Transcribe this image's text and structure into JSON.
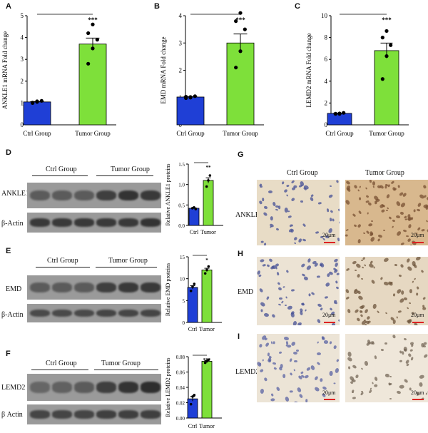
{
  "panels": {
    "A": {
      "letter": "A"
    },
    "B": {
      "letter": "B"
    },
    "C": {
      "letter": "C"
    },
    "D": {
      "letter": "D"
    },
    "E": {
      "letter": "E"
    },
    "F": {
      "letter": "F"
    },
    "G": {
      "letter": "G"
    },
    "H": {
      "letter": "H"
    },
    "I": {
      "letter": "I"
    }
  },
  "western": {
    "D": {
      "ctrl_group": "Ctrl Group",
      "tumor_group": "Tumor Group",
      "row1": "ANKLE1",
      "row2": "β-Actin"
    },
    "E": {
      "ctrl_group": "Ctrl Group",
      "tumor_group": "Tumor Group",
      "row1": "EMD",
      "row2": "β-Actin"
    },
    "F": {
      "ctrl_group": "Ctrl Group",
      "tumor_group": "Tumor Group",
      "row1": "LEMD2",
      "row2": "β Actin"
    }
  },
  "ihc": {
    "col_ctrl": "Ctrl Group",
    "col_tumor": "Tumor Group",
    "rows": [
      "ANKLE1",
      "EMD",
      "LEMD2"
    ],
    "scale": "20μm"
  },
  "chart_data": [
    {
      "id": "A",
      "type": "bar",
      "categories": [
        "Ctrl Group",
        "Tumor Group"
      ],
      "values": [
        1.05,
        3.7
      ],
      "points": [
        [
          1.0,
          1.05,
          1.1,
          1.02,
          1.08
        ],
        [
          2.8,
          3.5,
          3.9,
          4.2,
          4.6
        ]
      ],
      "ylabel": "ANKLE1 mRNA Fold change",
      "ylim": [
        0,
        5
      ],
      "yticks": [
        0,
        1,
        2,
        3,
        4,
        5
      ],
      "sig": "***"
    },
    {
      "id": "B",
      "type": "bar",
      "categories": [
        "Ctrl Group",
        "Tumor Group"
      ],
      "values": [
        1.02,
        3.0
      ],
      "points": [
        [
          0.98,
          1.0,
          1.05,
          1.03,
          1.02
        ],
        [
          2.1,
          2.7,
          3.5,
          3.8,
          4.1
        ]
      ],
      "ylabel": "EMD mRNA Fold change",
      "ylim": [
        0,
        4
      ],
      "yticks": [
        0,
        1,
        2,
        3,
        4
      ],
      "sig": "***"
    },
    {
      "id": "C",
      "type": "bar",
      "categories": [
        "Ctrl Group",
        "Tumor Group"
      ],
      "values": [
        1.05,
        6.8
      ],
      "points": [
        [
          1.0,
          1.05,
          1.1,
          1.02,
          1.0
        ],
        [
          4.2,
          6.3,
          7.3,
          8.0,
          8.6
        ]
      ],
      "ylabel": "LEMD2 mRNA Fold change",
      "ylim": [
        0,
        10
      ],
      "yticks": [
        0,
        2,
        4,
        6,
        8,
        10
      ],
      "sig": "***"
    },
    {
      "id": "D",
      "type": "bar",
      "categories": [
        "Ctrl",
        "Tumor"
      ],
      "values": [
        0.42,
        1.1
      ],
      "points": [
        [
          0.42,
          0.44,
          0.4
        ],
        [
          0.95,
          1.1,
          1.22
        ]
      ],
      "ylabel": "Relative ANKLE1 proteins",
      "ylim": [
        0,
        1.5
      ],
      "yticks": [
        "0.0",
        "0.5",
        "1.0",
        "1.5"
      ],
      "sig": "**"
    },
    {
      "id": "E",
      "type": "bar",
      "categories": [
        "Ctrl",
        "Tumor"
      ],
      "values": [
        8.0,
        12.0
      ],
      "points": [
        [
          7.2,
          8.2,
          8.8
        ],
        [
          11.2,
          12.0,
          12.8
        ]
      ],
      "ylabel": "Relative EMD proteins",
      "ylim": [
        0,
        15
      ],
      "yticks": [
        "0",
        "5",
        "10",
        "15"
      ],
      "sig": "*"
    },
    {
      "id": "F",
      "type": "bar",
      "categories": [
        "Ctrl",
        "Tumor"
      ],
      "values": [
        0.025,
        0.074
      ],
      "points": [
        [
          0.018,
          0.028,
          0.03
        ],
        [
          0.072,
          0.074,
          0.076
        ]
      ],
      "ylabel": "Relative LEMD2 proteins",
      "ylim": [
        0,
        0.08
      ],
      "yticks": [
        "0.00",
        "0.02",
        "0.04",
        "0.06",
        "0.08"
      ],
      "sig": "***"
    }
  ],
  "colors": {
    "ctrl": "#1f3fd6",
    "tumor": "#7ee03a",
    "blot": "#9a9a9a",
    "band": "#3a3a3a",
    "ihc_bg": "#e9ddc8",
    "scale": "#dd2222"
  }
}
